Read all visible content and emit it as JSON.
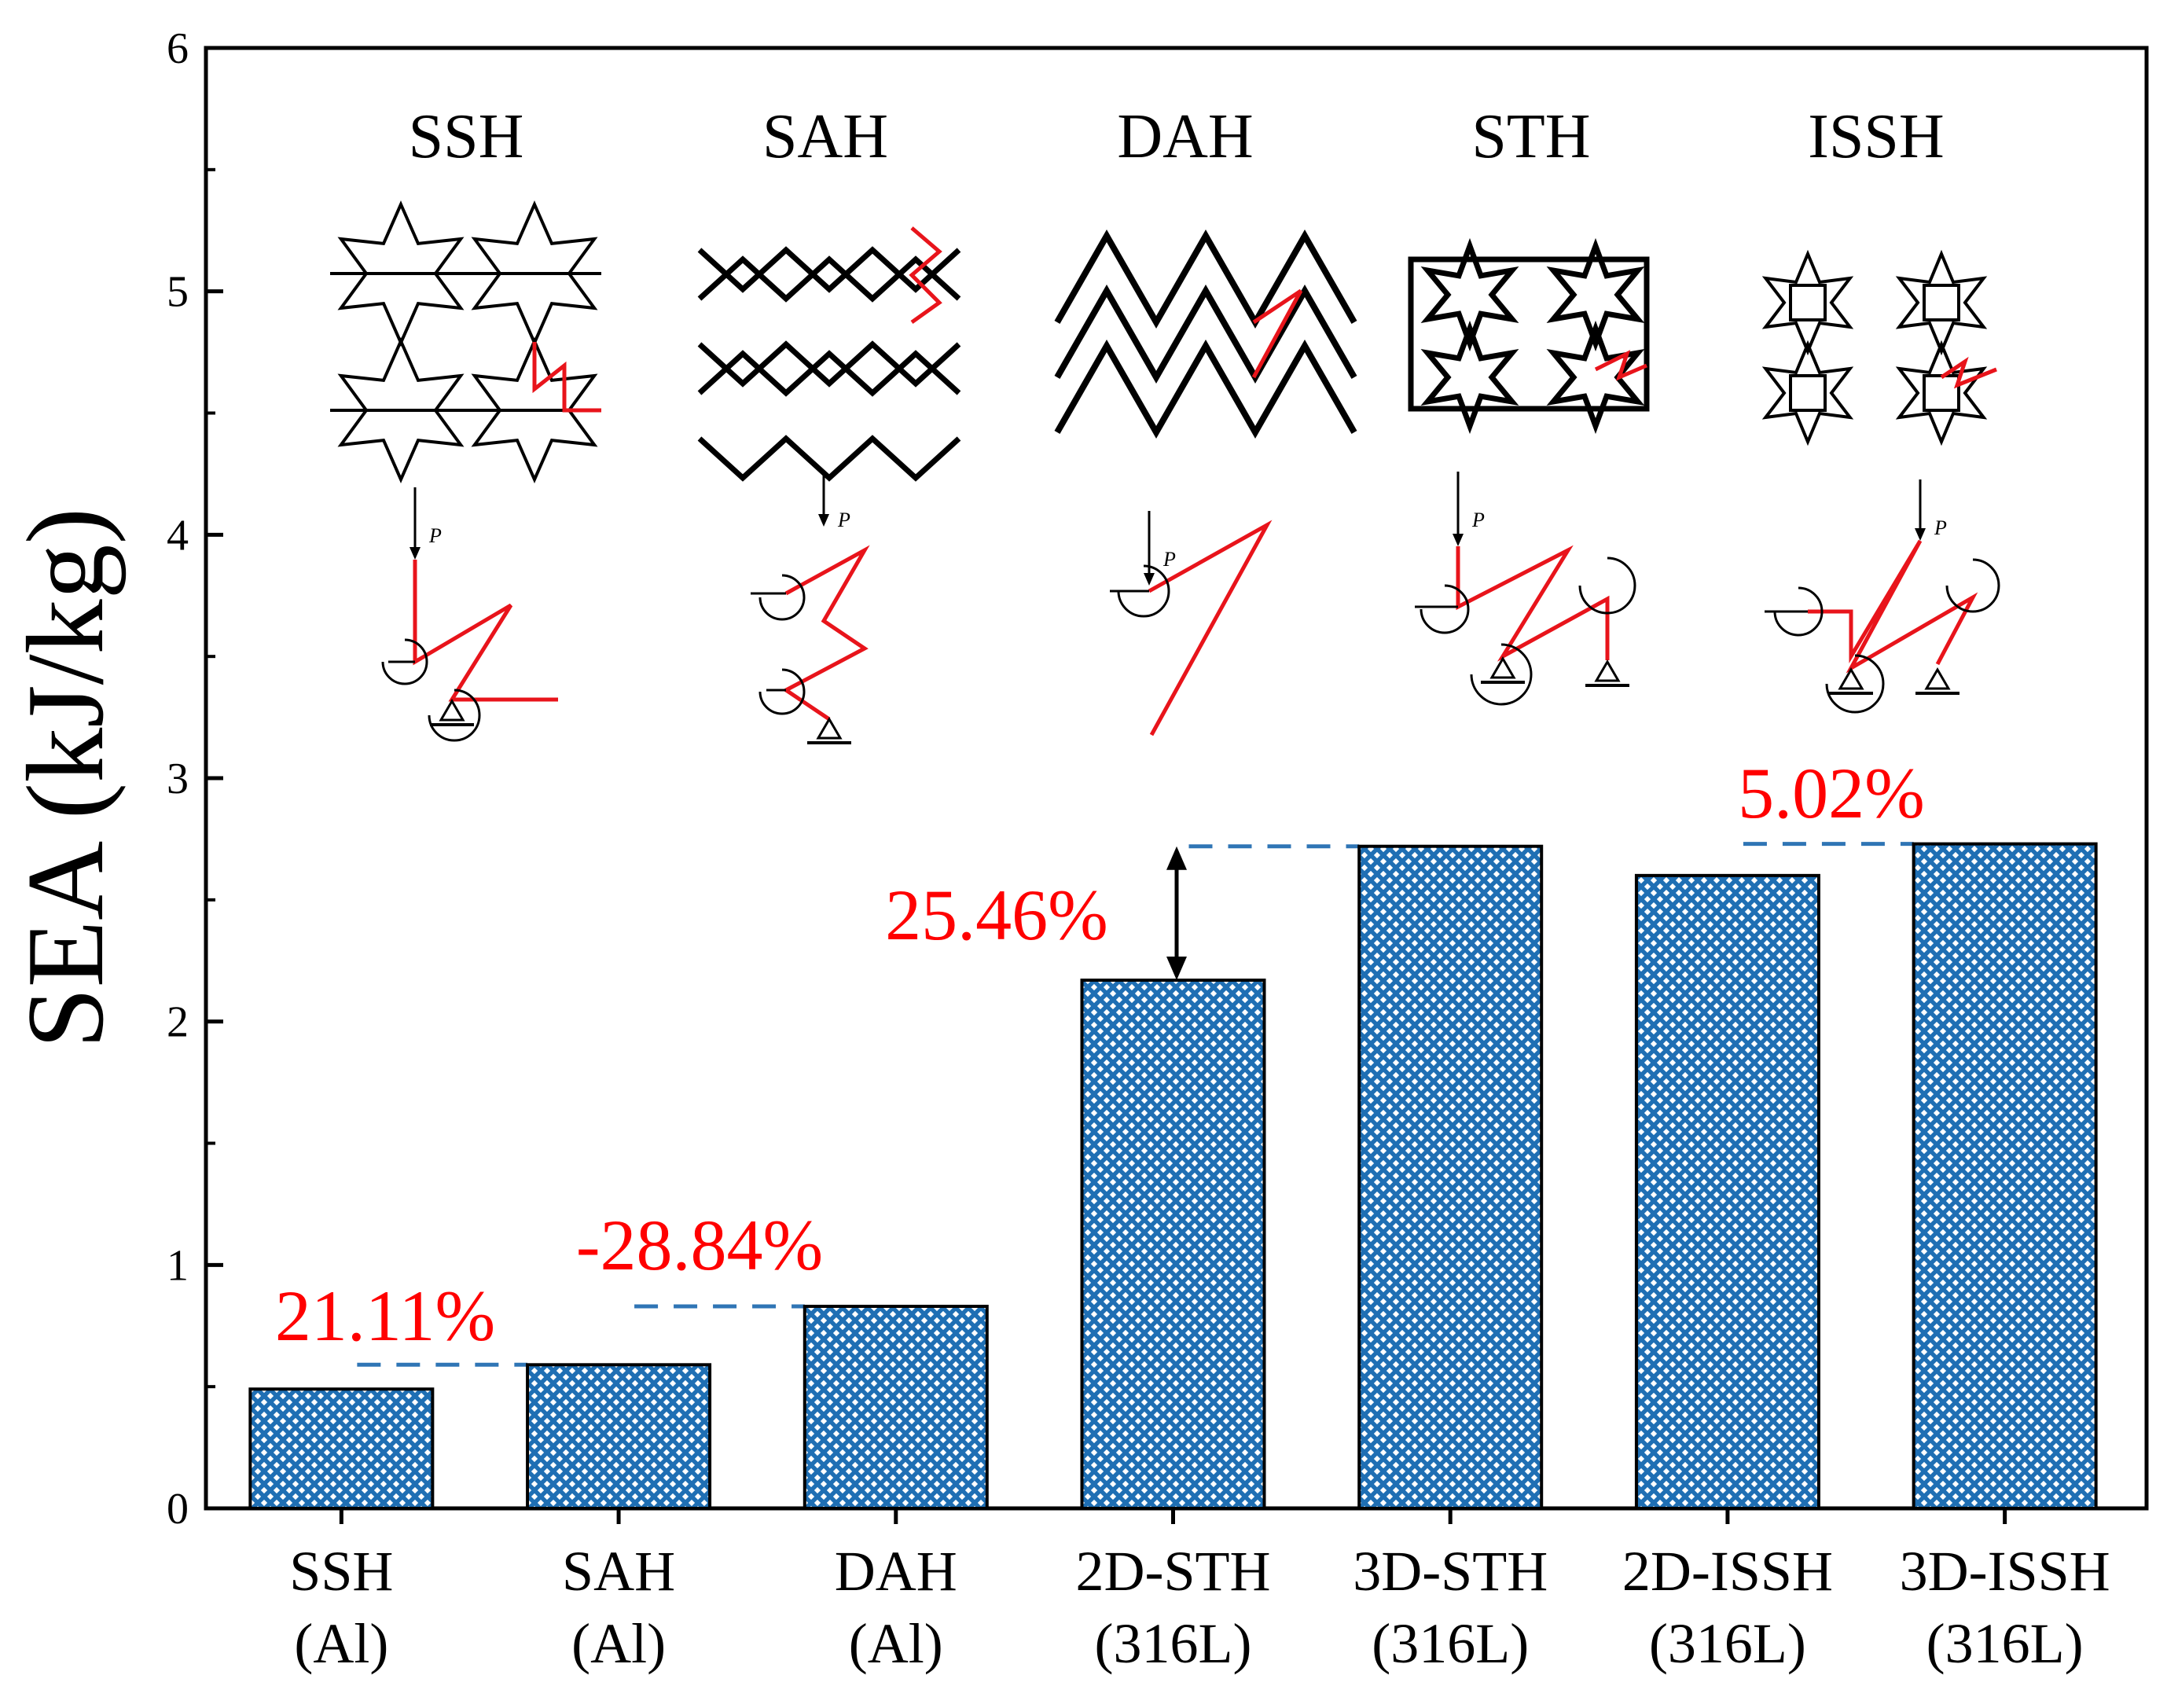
{
  "chart_data": {
    "type": "bar",
    "ylabel": "SEA (kJ/kg)",
    "ylim": [
      0,
      6
    ],
    "yticks": [
      0,
      1,
      2,
      3,
      4,
      5,
      6
    ],
    "grid": false,
    "legend": "none",
    "categories": [
      [
        "SSH",
        "(Al)"
      ],
      [
        "SAH",
        "(Al)"
      ],
      [
        "DAH",
        "(Al)"
      ],
      [
        "2D-STH",
        "(316L)"
      ],
      [
        "3D-STH",
        "(316L)"
      ],
      [
        "2D-ISSH",
        "(316L)"
      ],
      [
        "3D-ISSH",
        "(316L)"
      ]
    ],
    "values": [
      0.49,
      0.59,
      0.83,
      2.17,
      2.72,
      2.6,
      2.73
    ],
    "bar_fill": "#1f6fb4",
    "annotations": [
      {
        "text": "21.11%",
        "from_bar": 0,
        "to_bar": 1,
        "level": 0.59
      },
      {
        "text": "-28.84%",
        "from_bar": 1,
        "to_bar": 2,
        "level": 0.83
      },
      {
        "text": "25.46%",
        "from_bar": 3,
        "to_bar": 4,
        "level": 2.72
      },
      {
        "text": "5.02%",
        "from_bar": 5,
        "to_bar": 6,
        "level": 2.73
      }
    ],
    "annotation_color": "#ff0000",
    "guide_line_color": "#2f75b5",
    "inset_labels": [
      "SSH",
      "SAH",
      "DAH",
      "STH",
      "ISSH"
    ],
    "inset_load_label": "P",
    "mechanism_color": "#e8141b"
  }
}
